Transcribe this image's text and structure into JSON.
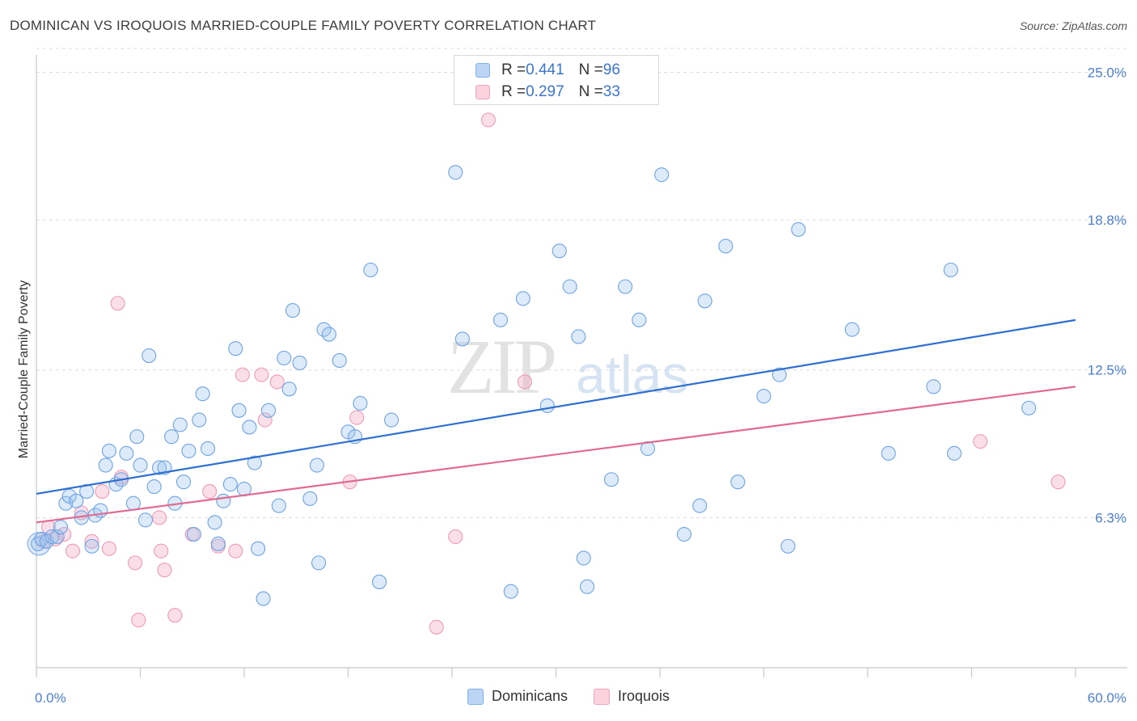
{
  "header": {
    "title": "DOMINICAN VS IROQUOIS MARRIED-COUPLE FAMILY POVERTY CORRELATION CHART",
    "source": "Source: ZipAtlas.com"
  },
  "watermark": {
    "zip": "ZIP",
    "atlas": "atlas"
  },
  "legend_top": {
    "rows": [
      {
        "r_label": "R = ",
        "r_value": "0.441",
        "n_label": "N = ",
        "n_value": "96"
      },
      {
        "r_label": "R = ",
        "r_value": "0.297",
        "n_label": "N = ",
        "n_value": "33"
      }
    ]
  },
  "legend_bottom": {
    "items": [
      "Dominicans",
      "Iroquois"
    ]
  },
  "chart_data": {
    "type": "scatter",
    "title": "DOMINICAN VS IROQUOIS MARRIED-COUPLE FAMILY POVERTY CORRELATION CHART",
    "xlabel": "",
    "ylabel": "Married-Couple Family Poverty",
    "xlim": [
      0,
      60
    ],
    "ylim": [
      0,
      26
    ],
    "x_tick_labels": [
      "0.0%",
      "60.0%"
    ],
    "y_ticks": [
      6.3,
      12.5,
      18.8,
      25.0
    ],
    "y_tick_labels": [
      "6.3%",
      "12.5%",
      "18.8%",
      "25.0%"
    ],
    "colors": {
      "Dominicans": "#7fb0ea",
      "Iroquois": "#f3a3bd",
      "blue_line": "#2f6fcf",
      "pink_line": "#e06a92"
    },
    "series": [
      {
        "name": "Dominicans",
        "trend": {
          "x": [
            0,
            60
          ],
          "y": [
            7.3,
            14.6
          ]
        },
        "points": [
          [
            0.1,
            5.2
          ],
          [
            0.3,
            5.4
          ],
          [
            0.6,
            5.3
          ],
          [
            0.9,
            5.5
          ],
          [
            1.2,
            5.5
          ],
          [
            1.4,
            5.9
          ],
          [
            1.7,
            6.9
          ],
          [
            1.9,
            7.2
          ],
          [
            2.3,
            7.0
          ],
          [
            2.6,
            6.3
          ],
          [
            2.9,
            7.4
          ],
          [
            3.2,
            5.1
          ],
          [
            3.4,
            6.4
          ],
          [
            3.7,
            6.6
          ],
          [
            4.0,
            8.5
          ],
          [
            4.2,
            9.1
          ],
          [
            4.6,
            7.7
          ],
          [
            4.9,
            7.9
          ],
          [
            5.2,
            9.0
          ],
          [
            5.6,
            6.9
          ],
          [
            5.8,
            9.7
          ],
          [
            6.0,
            8.5
          ],
          [
            6.3,
            6.2
          ],
          [
            6.5,
            13.1
          ],
          [
            6.8,
            7.6
          ],
          [
            7.1,
            8.4
          ],
          [
            7.4,
            8.4
          ],
          [
            7.8,
            9.7
          ],
          [
            8.0,
            6.9
          ],
          [
            8.3,
            10.2
          ],
          [
            8.5,
            7.8
          ],
          [
            8.8,
            9.1
          ],
          [
            9.1,
            5.6
          ],
          [
            9.4,
            10.4
          ],
          [
            9.6,
            11.5
          ],
          [
            9.9,
            9.2
          ],
          [
            10.3,
            6.1
          ],
          [
            10.5,
            5.2
          ],
          [
            10.8,
            7.0
          ],
          [
            11.2,
            7.7
          ],
          [
            11.5,
            13.4
          ],
          [
            11.7,
            10.8
          ],
          [
            12.0,
            7.5
          ],
          [
            12.3,
            10.1
          ],
          [
            12.6,
            8.6
          ],
          [
            12.8,
            5.0
          ],
          [
            13.1,
            2.9
          ],
          [
            13.4,
            10.8
          ],
          [
            14.0,
            6.8
          ],
          [
            14.3,
            13.0
          ],
          [
            14.6,
            11.7
          ],
          [
            14.8,
            15.0
          ],
          [
            15.2,
            12.8
          ],
          [
            15.8,
            7.1
          ],
          [
            16.2,
            8.5
          ],
          [
            16.3,
            4.4
          ],
          [
            16.6,
            14.2
          ],
          [
            16.9,
            14.0
          ],
          [
            17.5,
            12.9
          ],
          [
            18.0,
            9.9
          ],
          [
            18.4,
            9.7
          ],
          [
            18.7,
            11.1
          ],
          [
            19.3,
            16.7
          ],
          [
            19.8,
            3.6
          ],
          [
            20.5,
            10.4
          ],
          [
            24.2,
            20.8
          ],
          [
            24.6,
            13.8
          ],
          [
            26.8,
            14.6
          ],
          [
            27.4,
            3.2
          ],
          [
            28.1,
            15.5
          ],
          [
            29.5,
            11.0
          ],
          [
            30.2,
            17.5
          ],
          [
            30.8,
            16.0
          ],
          [
            31.3,
            13.9
          ],
          [
            31.6,
            4.6
          ],
          [
            31.8,
            3.4
          ],
          [
            33.2,
            7.9
          ],
          [
            34.0,
            16.0
          ],
          [
            34.8,
            14.6
          ],
          [
            35.3,
            9.2
          ],
          [
            36.1,
            20.7
          ],
          [
            37.4,
            5.6
          ],
          [
            38.3,
            6.8
          ],
          [
            38.6,
            15.4
          ],
          [
            39.8,
            17.7
          ],
          [
            40.5,
            7.8
          ],
          [
            42.0,
            11.4
          ],
          [
            42.9,
            12.3
          ],
          [
            43.4,
            5.1
          ],
          [
            44.0,
            18.4
          ],
          [
            47.1,
            14.2
          ],
          [
            49.2,
            9.0
          ],
          [
            51.8,
            11.8
          ],
          [
            52.8,
            16.7
          ],
          [
            53.0,
            9.0
          ],
          [
            57.3,
            10.9
          ]
        ]
      },
      {
        "name": "Iroquois",
        "trend": {
          "x": [
            0,
            60
          ],
          "y": [
            6.1,
            11.8
          ]
        },
        "points": [
          [
            0.4,
            5.3
          ],
          [
            0.7,
            5.9
          ],
          [
            1.1,
            5.4
          ],
          [
            1.6,
            5.6
          ],
          [
            2.1,
            4.9
          ],
          [
            2.6,
            6.5
          ],
          [
            3.2,
            5.3
          ],
          [
            3.8,
            7.4
          ],
          [
            4.2,
            5.0
          ],
          [
            4.9,
            8.0
          ],
          [
            4.7,
            15.3
          ],
          [
            5.7,
            4.4
          ],
          [
            5.9,
            2.0
          ],
          [
            7.1,
            6.3
          ],
          [
            7.2,
            4.9
          ],
          [
            7.4,
            4.1
          ],
          [
            8.0,
            2.2
          ],
          [
            9.0,
            5.6
          ],
          [
            10.0,
            7.4
          ],
          [
            10.5,
            5.1
          ],
          [
            11.5,
            4.9
          ],
          [
            11.9,
            12.3
          ],
          [
            13.0,
            12.3
          ],
          [
            13.2,
            10.4
          ],
          [
            13.9,
            12.0
          ],
          [
            18.1,
            7.8
          ],
          [
            18.5,
            10.5
          ],
          [
            23.1,
            1.7
          ],
          [
            24.2,
            5.5
          ],
          [
            26.1,
            23.0
          ],
          [
            28.2,
            12.0
          ],
          [
            54.5,
            9.5
          ],
          [
            59.0,
            7.8
          ]
        ]
      }
    ]
  }
}
